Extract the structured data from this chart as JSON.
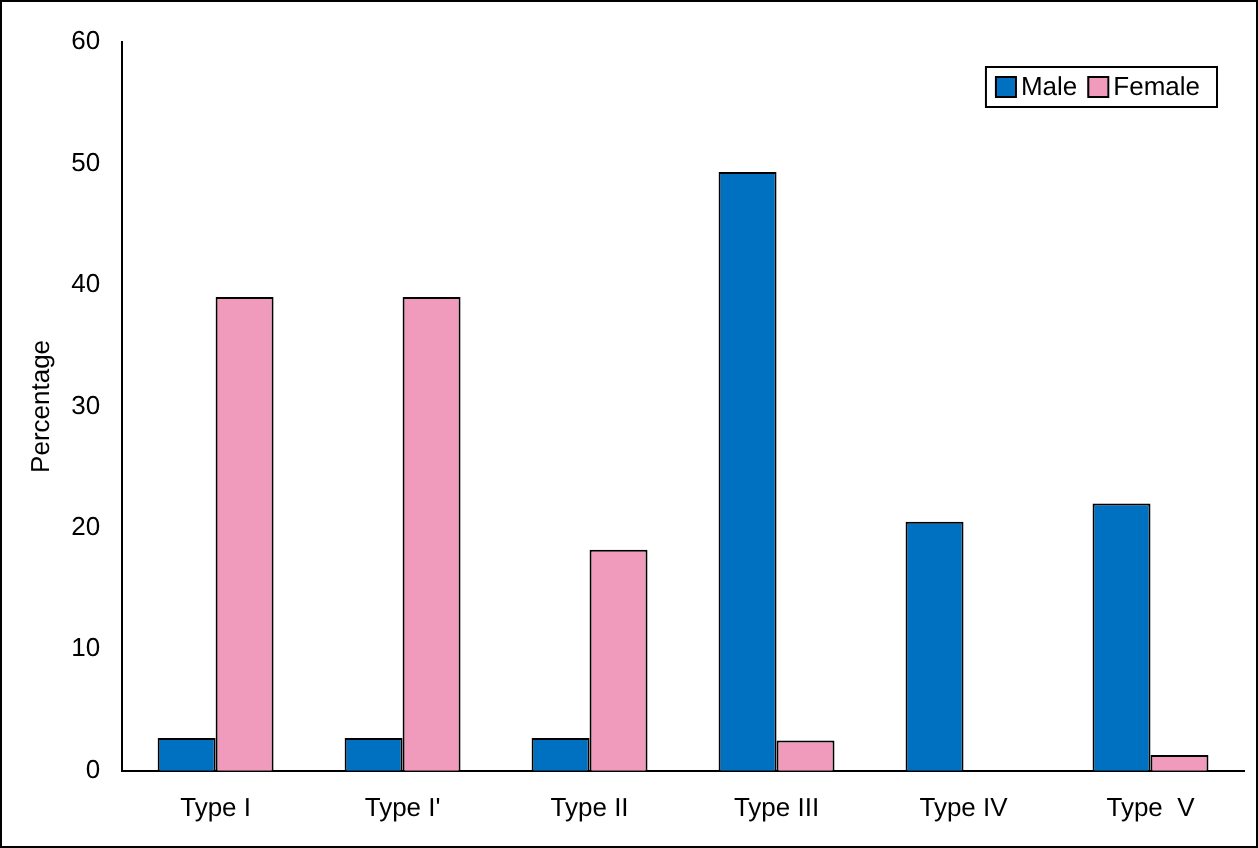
{
  "chart_data": {
    "type": "bar",
    "ylabel": "Percentage",
    "categories": [
      "Type I",
      "Type I'",
      "Type II",
      "Type III",
      "Type IV",
      "Type  V"
    ],
    "series": [
      {
        "name": "Male",
        "color": "#0070c0",
        "values": [
          2.7,
          2.7,
          2.7,
          49.3,
          20.5,
          22
        ]
      },
      {
        "name": "Female",
        "color": "#f09bbb",
        "values": [
          39,
          39,
          18.2,
          2.5,
          0,
          1.3
        ]
      }
    ],
    "ylim": [
      0,
      60
    ],
    "yticks": [
      0,
      10,
      20,
      30,
      40,
      50,
      60
    ],
    "grid": false,
    "legend": "top right"
  }
}
